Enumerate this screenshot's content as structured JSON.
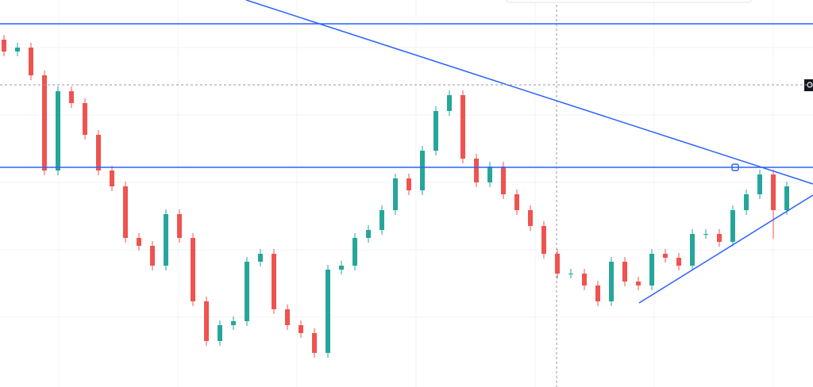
{
  "chart_data": {
    "type": "candlestick",
    "ylim": [
      0,
      488
    ],
    "up_color": "#26a69a",
    "down_color": "#ef5350",
    "line_color": "#2962ff",
    "levels": [
      458,
      277
    ],
    "crosshair_level": 381,
    "open": [
      438,
      423,
      428,
      393,
      273,
      373,
      358,
      318,
      273,
      253,
      188,
      178,
      153,
      218,
      188,
      108,
      58,
      78,
      83,
      158,
      168,
      98,
      78,
      68,
      43,
      148,
      153,
      188,
      198,
      223,
      263,
      248,
      298,
      348,
      368,
      288,
      258,
      278,
      243,
      223,
      203,
      168,
      143,
      143,
      128,
      108,
      158,
      133,
      128,
      168,
      163,
      153,
      193,
      193,
      183,
      223,
      243,
      268,
      223
    ],
    "high": [
      444,
      434,
      434,
      399,
      379,
      379,
      364,
      324,
      279,
      259,
      194,
      184,
      224,
      224,
      194,
      114,
      84,
      89,
      164,
      174,
      174,
      104,
      84,
      74,
      154,
      159,
      194,
      204,
      229,
      269,
      269,
      304,
      354,
      374,
      374,
      294,
      284,
      284,
      249,
      229,
      209,
      174,
      149,
      149,
      134,
      164,
      164,
      139,
      174,
      174,
      169,
      199,
      199,
      199,
      229,
      249,
      274,
      274,
      259
    ],
    "low": [
      417,
      417,
      387,
      267,
      267,
      352,
      312,
      267,
      247,
      182,
      172,
      147,
      147,
      182,
      102,
      52,
      52,
      72,
      77,
      152,
      92,
      72,
      62,
      37,
      37,
      142,
      147,
      182,
      192,
      217,
      242,
      242,
      292,
      342,
      282,
      252,
      252,
      237,
      217,
      197,
      162,
      137,
      137,
      122,
      102,
      102,
      127,
      122,
      122,
      157,
      147,
      147,
      187,
      177,
      177,
      217,
      237,
      187,
      217
    ],
    "close": [
      423,
      428,
      393,
      273,
      373,
      358,
      318,
      273,
      253,
      188,
      178,
      153,
      218,
      188,
      108,
      58,
      78,
      83,
      158,
      168,
      98,
      78,
      68,
      43,
      148,
      153,
      188,
      198,
      223,
      263,
      248,
      298,
      348,
      368,
      288,
      258,
      278,
      243,
      223,
      203,
      168,
      143,
      143,
      128,
      108,
      158,
      133,
      128,
      168,
      163,
      153,
      193,
      193,
      183,
      223,
      243,
      268,
      223,
      253
    ]
  }
}
